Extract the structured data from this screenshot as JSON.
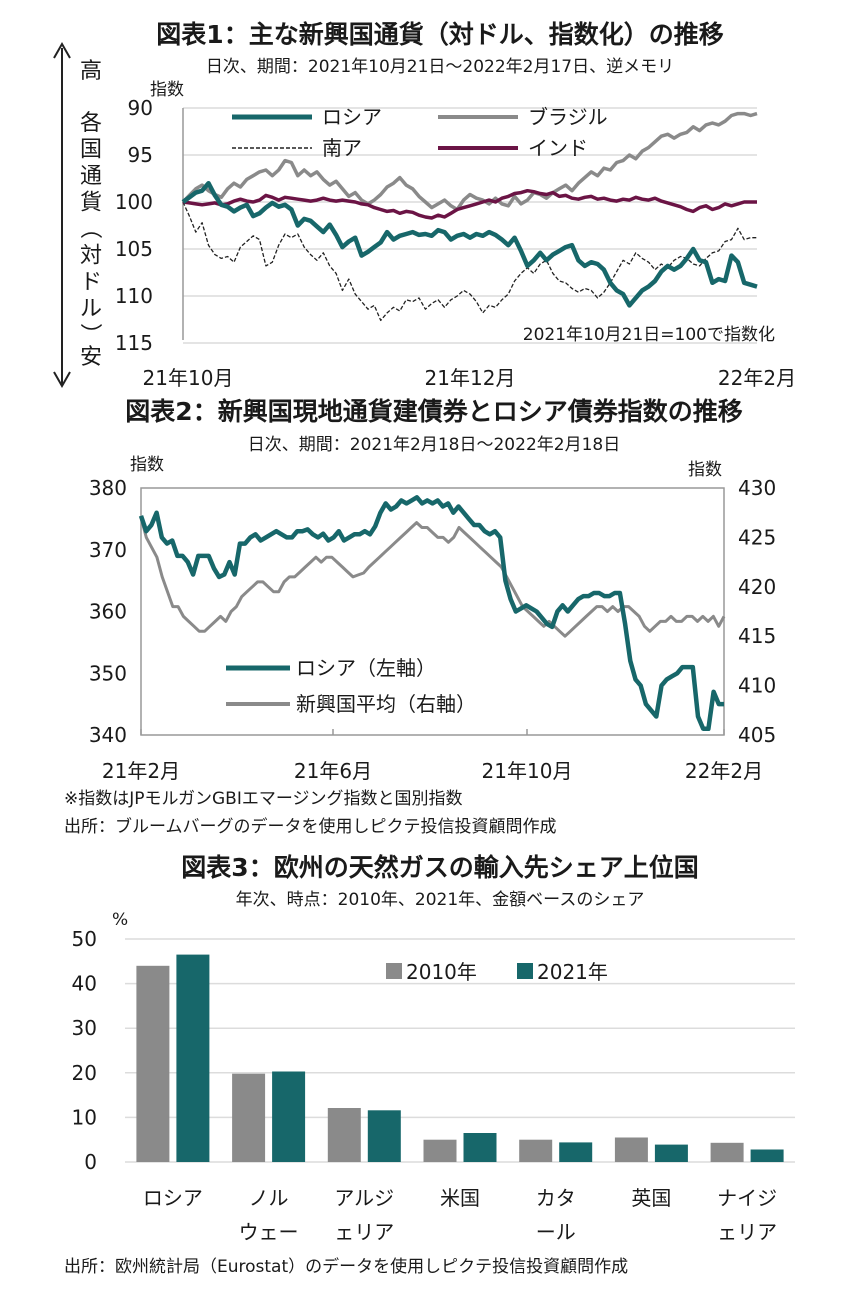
{
  "colors": {
    "teal": "#17676a",
    "gray": "#8a8a8a",
    "maroon": "#6b1445",
    "dashed": "#222222",
    "grid": "#dcdcdc"
  },
  "chart1": {
    "title": "図表1：主な新興国通貨（対ドル、指数化）の推移",
    "subtitle": "日次、期間：2021年10月21日～2022年2月17日、逆メモリ",
    "unit_label": "指数",
    "side_label": "各国通貨（対ドル）",
    "high_label": "高",
    "low_label": "安",
    "note": "2021年10月21日=100で指数化",
    "y_ticks": [
      "90",
      "95",
      "100",
      "105",
      "110",
      "115"
    ],
    "x_ticks": [
      "21年10月",
      "21年12月",
      "22年2月"
    ]
  },
  "chart2": {
    "title": "図表2：新興国現地通貨建債券とロシア債券指数の推移",
    "subtitle": "日次、期間：2021年2月18日～2022年2月18日",
    "left_unit": "指数",
    "right_unit": "指数",
    "left_ticks": [
      "380",
      "370",
      "360",
      "350",
      "340"
    ],
    "right_ticks": [
      "430",
      "425",
      "420",
      "415",
      "410",
      "405"
    ],
    "x_ticks": [
      "21年2月",
      "21年6月",
      "21年10月",
      "22年2月"
    ],
    "note1": "※指数はJPモルガンGBIエマージング指数と国別指数",
    "note2": "出所：ブルームバーグのデータを使用しピクテ投信投資顧問作成"
  },
  "chart3": {
    "title": "図表3：欧州の天然ガスの輸入先シェア上位国",
    "subtitle": "年次、時点：2010年、2021年、金額ベースのシェア",
    "unit": "%",
    "y_ticks": [
      "50",
      "40",
      "30",
      "20",
      "10",
      "0"
    ],
    "categories": [
      [
        "ロシア",
        ""
      ],
      [
        "ノル",
        "ウェー"
      ],
      [
        "アルジ",
        "ェリア"
      ],
      [
        "米国",
        ""
      ],
      [
        "カタ",
        "ール"
      ],
      [
        "英国",
        ""
      ],
      [
        "ナイジ",
        "ェリア"
      ]
    ],
    "source": "出所：欧州統計局（Eurostat）のデータを使用しピクテ投信投資顧問作成"
  },
  "chart_data": [
    {
      "type": "line",
      "title": "図表1：主な新興国通貨（対ドル、指数化）の推移",
      "ylabel": "指数",
      "ylim": [
        115,
        90
      ],
      "inverted_axis": true,
      "grid": true,
      "legend_position": "top",
      "x_range": [
        "2021-10-21",
        "2022-02-17"
      ],
      "series": [
        {
          "name": "ロシア",
          "color": "#17676a",
          "values": [
            100,
            99.5,
            99.0,
            98.8,
            98.0,
            99.3,
            100.3,
            100.5,
            101.0,
            100.6,
            100.3,
            101.5,
            101.2,
            100.6,
            100.1,
            100.5,
            100.3,
            100.8,
            102.5,
            101.8,
            102.0,
            102.6,
            103.2,
            102.4,
            103.5,
            104.8,
            104.2,
            103.8,
            105.7,
            105.3,
            104.8,
            104.3,
            103.2,
            104.0,
            103.6,
            103.4,
            103.2,
            103.5,
            103.4,
            103.6,
            103.0,
            103.2,
            104.0,
            103.6,
            103.4,
            103.8,
            103.4,
            103.6,
            103.2,
            103.5,
            104.0,
            104.6,
            103.8,
            105.2,
            106.8,
            106.2,
            105.4,
            106.2,
            105.6,
            105.2,
            104.8,
            104.6,
            106.2,
            106.8,
            106.4,
            106.6,
            107.2,
            108.6,
            109.4,
            109.8,
            111.0,
            110.2,
            109.4,
            109.0,
            108.4,
            107.4,
            106.8,
            107.2,
            106.8,
            106.0,
            105.0,
            106.2,
            106.4,
            108.6,
            108.2,
            108.4,
            105.7,
            106.4,
            108.6,
            108.8,
            109.0
          ]
        },
        {
          "name": "ブラジル",
          "color": "#8a8a8a",
          "values": [
            100,
            99.3,
            98.6,
            98.2,
            98.8,
            99.2,
            99.5,
            98.6,
            98.0,
            98.4,
            97.6,
            97.2,
            96.8,
            96.6,
            97.2,
            96.6,
            95.6,
            95.8,
            97.2,
            96.6,
            97.2,
            96.8,
            97.6,
            98.2,
            97.8,
            98.6,
            99.4,
            99.0,
            99.8,
            100.2,
            99.8,
            99.2,
            98.4,
            98.0,
            97.4,
            98.2,
            98.6,
            99.4,
            100.0,
            100.6,
            100.2,
            99.8,
            100.4,
            100.8,
            99.8,
            99.2,
            99.6,
            99.8,
            100.2,
            99.6,
            100.2,
            100.4,
            99.4,
            100.2,
            99.8,
            99.0,
            99.2,
            99.6,
            99.0,
            98.6,
            98.2,
            98.8,
            98.0,
            97.4,
            96.8,
            97.2,
            96.4,
            96.6,
            95.8,
            95.6,
            95.0,
            95.4,
            94.6,
            94.2,
            93.6,
            93.0,
            92.8,
            93.2,
            92.8,
            92.6,
            92.0,
            92.4,
            91.8,
            91.6,
            91.8,
            91.4,
            90.8,
            90.6,
            90.6,
            90.8,
            90.6
          ]
        },
        {
          "name": "南ア",
          "color": "#222222",
          "values": [
            100,
            101.5,
            103.2,
            102.2,
            104.6,
            105.6,
            106.0,
            105.8,
            106.4,
            104.8,
            104.2,
            103.6,
            104.0,
            106.8,
            106.4,
            104.6,
            103.4,
            103.8,
            103.4,
            104.8,
            105.6,
            106.2,
            105.4,
            106.8,
            107.6,
            109.4,
            108.2,
            109.8,
            110.6,
            111.4,
            111.0,
            112.6,
            111.8,
            111.2,
            111.6,
            110.4,
            110.6,
            110.2,
            111.4,
            110.8,
            110.4,
            111.2,
            110.4,
            110.0,
            109.4,
            109.8,
            110.6,
            111.8,
            111.0,
            111.2,
            110.4,
            109.8,
            108.4,
            107.6,
            107.0,
            107.6,
            106.6,
            106.2,
            107.6,
            108.4,
            108.6,
            109.2,
            109.6,
            109.2,
            109.4,
            110.2,
            109.6,
            108.6,
            107.4,
            106.2,
            106.6,
            105.4,
            106.0,
            106.4,
            107.2,
            106.6,
            107.0,
            106.2,
            105.8,
            106.0,
            106.6,
            106.8,
            106.0,
            105.4,
            105.2,
            104.2,
            104.0,
            102.8,
            104.0,
            103.8,
            103.8
          ]
        },
        {
          "name": "インド",
          "color": "#6b1445",
          "values": [
            100,
            100.1,
            100.2,
            100.3,
            100.2,
            100.1,
            100.3,
            100.2,
            99.9,
            99.7,
            99.9,
            100.0,
            99.8,
            99.3,
            99.5,
            99.8,
            99.5,
            99.6,
            99.7,
            99.8,
            99.9,
            99.8,
            99.6,
            99.8,
            99.9,
            99.8,
            99.9,
            100.0,
            100.2,
            100.3,
            100.6,
            100.8,
            101.0,
            100.9,
            101.2,
            101.0,
            101.1,
            101.4,
            101.6,
            101.7,
            101.4,
            101.6,
            101.2,
            100.8,
            100.6,
            100.4,
            100.2,
            100.0,
            99.8,
            100.0,
            99.6,
            99.4,
            99.1,
            99.0,
            98.8,
            98.9,
            99.1,
            99.2,
            99.0,
            99.4,
            99.3,
            99.6,
            99.7,
            99.5,
            99.4,
            99.7,
            99.6,
            99.8,
            99.9,
            99.7,
            99.8,
            99.5,
            99.7,
            99.8,
            99.6,
            99.9,
            100.1,
            100.3,
            100.5,
            100.8,
            101.0,
            100.6,
            100.4,
            100.8,
            100.6,
            100.2,
            100.4,
            100.2,
            100.0,
            100.0,
            100.0
          ]
        }
      ]
    },
    {
      "type": "line",
      "title": "図表2：新興国現地通貨建債券とロシア債券指数の推移",
      "ylabel_left": "指数",
      "ylabel_right": "指数",
      "ylim_left": [
        340,
        380
      ],
      "ylim_right": [
        405,
        430
      ],
      "x_range": [
        "2021-02-18",
        "2022-02-18"
      ],
      "legend_position": "bottom-left",
      "series": [
        {
          "name": "ロシア（左軸）",
          "axis": "left",
          "color": "#17676a",
          "values": [
            375.5,
            373,
            374,
            376,
            372,
            371,
            371.5,
            369,
            369,
            368,
            366,
            369,
            369,
            369,
            367,
            365.6,
            366,
            368,
            366,
            371,
            371,
            372,
            372.5,
            371.5,
            372,
            372.5,
            373,
            372.5,
            372,
            372,
            373,
            373,
            373.3,
            372.5,
            372,
            372.6,
            371.5,
            372,
            373,
            371.5,
            372,
            372.5,
            372.5,
            373,
            372.5,
            373.8,
            376,
            377.5,
            376.5,
            377,
            378,
            377.5,
            378,
            378.5,
            377.5,
            378,
            377.5,
            378,
            377,
            377.5,
            376,
            377,
            376,
            375,
            374,
            374,
            373,
            372.5,
            373,
            372,
            365,
            362,
            360,
            360.5,
            361,
            360.5,
            360,
            359,
            358,
            357.5,
            360,
            361,
            360,
            361,
            362,
            362.5,
            362.5,
            363,
            363,
            362.5,
            362.5,
            363,
            363,
            358,
            352,
            349,
            348,
            345,
            344,
            343,
            348,
            349,
            349.5,
            350,
            351,
            351,
            351,
            343,
            341,
            341,
            347,
            345,
            345
          ]
        },
        {
          "name": "新興国平均（右軸）",
          "axis": "right",
          "color": "#8a8a8a",
          "values": [
            427,
            425,
            424,
            423,
            421,
            419.5,
            418,
            418,
            417,
            416.5,
            416,
            415.5,
            415.5,
            416,
            416.5,
            417,
            416.5,
            417.5,
            418,
            419,
            419.5,
            420,
            420.5,
            420.5,
            420,
            419.5,
            419.5,
            420.5,
            421,
            421,
            421.5,
            422,
            422.5,
            423,
            422.5,
            423,
            423,
            422.5,
            422,
            421.5,
            421,
            421.2,
            421.4,
            422,
            422.5,
            423,
            423.5,
            424,
            424.5,
            425,
            425.5,
            426,
            426.5,
            426,
            426,
            425.5,
            425,
            425,
            424.5,
            425,
            426,
            425.5,
            425,
            424.5,
            424,
            423.5,
            423,
            422.5,
            422,
            421,
            420,
            419,
            418,
            417.5,
            417,
            416.5,
            416,
            416.5,
            416,
            415.5,
            415,
            415.5,
            416,
            416.5,
            417,
            417.5,
            418,
            418,
            417.5,
            418,
            417.5,
            418,
            418,
            417.5,
            417,
            416,
            415.5,
            416,
            416.5,
            416.5,
            417,
            416.5,
            416.5,
            417,
            417,
            416.5,
            417,
            416.5,
            417,
            416,
            417
          ]
        }
      ]
    },
    {
      "type": "bar",
      "title": "図表3：欧州の天然ガスの輸入先シェア上位国",
      "ylabel": "%",
      "ylim": [
        0,
        50
      ],
      "grid": true,
      "legend_position": "top-right",
      "categories": [
        "ロシア",
        "ノルウェー",
        "アルジェリア",
        "米国",
        "カタール",
        "英国",
        "ナイジェリア"
      ],
      "series": [
        {
          "name": "2010年",
          "color": "#8a8a8a",
          "values": [
            44.0,
            19.8,
            12.1,
            5.0,
            5.0,
            5.5,
            4.3
          ]
        },
        {
          "name": "2021年",
          "color": "#17676a",
          "values": [
            46.5,
            20.3,
            11.6,
            6.5,
            4.4,
            3.9,
            2.8
          ]
        }
      ]
    }
  ]
}
